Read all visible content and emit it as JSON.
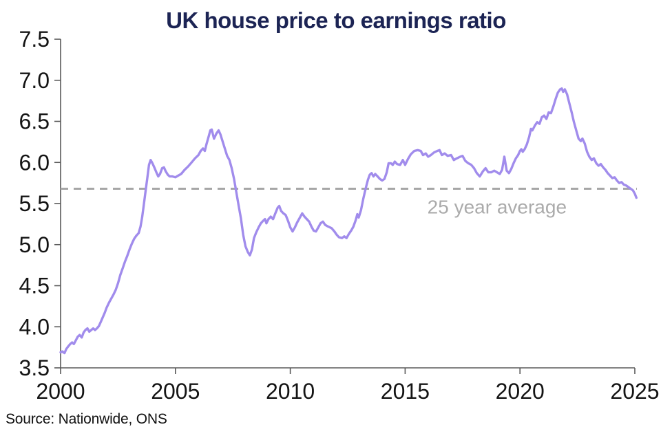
{
  "title": "UK house price to earnings ratio",
  "source": "Source: Nationwide, ONS",
  "colors": {
    "title": "#1c2454",
    "series_line": "#a18cec",
    "reference_line": "#a6a6a6",
    "reference_label": "#ababab",
    "axis": "#595959",
    "tick_label": "#141414",
    "background": "#ffffff"
  },
  "chart_data": {
    "type": "line",
    "title": "UK house price to earnings ratio",
    "xlabel": "",
    "ylabel": "",
    "xlim": [
      2000,
      2025
    ],
    "ylim": [
      3.5,
      7.5
    ],
    "x_ticks": [
      2000,
      2005,
      2010,
      2015,
      2020,
      2025
    ],
    "y_ticks": [
      3.5,
      4.0,
      4.5,
      5.0,
      5.5,
      6.0,
      6.5,
      7.0,
      7.5
    ],
    "grid": false,
    "legend_position": "none",
    "reference_line": {
      "label": "25 year average",
      "value": 5.68,
      "style": "dashed",
      "color": "#a6a6a6",
      "label_anchor_x": 2019.0,
      "label_anchor_y": 5.38
    },
    "series": [
      {
        "name": "UK house price to earnings ratio",
        "color": "#a18cec",
        "points": [
          [
            2000.0,
            3.69
          ],
          [
            2000.08,
            3.7
          ],
          [
            2000.17,
            3.68
          ],
          [
            2000.25,
            3.73
          ],
          [
            2000.33,
            3.76
          ],
          [
            2000.42,
            3.79
          ],
          [
            2000.5,
            3.81
          ],
          [
            2000.58,
            3.79
          ],
          [
            2000.67,
            3.84
          ],
          [
            2000.75,
            3.88
          ],
          [
            2000.83,
            3.9
          ],
          [
            2000.92,
            3.87
          ],
          [
            2001.0,
            3.93
          ],
          [
            2001.08,
            3.96
          ],
          [
            2001.17,
            3.98
          ],
          [
            2001.25,
            3.94
          ],
          [
            2001.33,
            3.96
          ],
          [
            2001.42,
            3.98
          ],
          [
            2001.5,
            3.96
          ],
          [
            2001.58,
            3.98
          ],
          [
            2001.67,
            4.01
          ],
          [
            2001.75,
            4.06
          ],
          [
            2001.83,
            4.11
          ],
          [
            2001.92,
            4.17
          ],
          [
            2002.0,
            4.23
          ],
          [
            2002.1,
            4.29
          ],
          [
            2002.2,
            4.34
          ],
          [
            2002.3,
            4.39
          ],
          [
            2002.4,
            4.45
          ],
          [
            2002.5,
            4.53
          ],
          [
            2002.6,
            4.63
          ],
          [
            2002.7,
            4.71
          ],
          [
            2002.8,
            4.79
          ],
          [
            2002.9,
            4.86
          ],
          [
            2003.0,
            4.94
          ],
          [
            2003.1,
            5.01
          ],
          [
            2003.2,
            5.07
          ],
          [
            2003.3,
            5.11
          ],
          [
            2003.4,
            5.14
          ],
          [
            2003.48,
            5.22
          ],
          [
            2003.55,
            5.33
          ],
          [
            2003.62,
            5.48
          ],
          [
            2003.7,
            5.65
          ],
          [
            2003.78,
            5.82
          ],
          [
            2003.85,
            5.97
          ],
          [
            2003.92,
            6.03
          ],
          [
            2004.0,
            5.99
          ],
          [
            2004.08,
            5.94
          ],
          [
            2004.17,
            5.88
          ],
          [
            2004.25,
            5.83
          ],
          [
            2004.33,
            5.86
          ],
          [
            2004.42,
            5.93
          ],
          [
            2004.5,
            5.94
          ],
          [
            2004.58,
            5.89
          ],
          [
            2004.67,
            5.85
          ],
          [
            2004.75,
            5.83
          ],
          [
            2004.87,
            5.83
          ],
          [
            2005.0,
            5.82
          ],
          [
            2005.12,
            5.84
          ],
          [
            2005.25,
            5.86
          ],
          [
            2005.4,
            5.91
          ],
          [
            2005.55,
            5.95
          ],
          [
            2005.7,
            6.0
          ],
          [
            2005.85,
            6.05
          ],
          [
            2006.0,
            6.09
          ],
          [
            2006.1,
            6.14
          ],
          [
            2006.2,
            6.17
          ],
          [
            2006.28,
            6.14
          ],
          [
            2006.35,
            6.22
          ],
          [
            2006.45,
            6.32
          ],
          [
            2006.52,
            6.39
          ],
          [
            2006.58,
            6.4
          ],
          [
            2006.68,
            6.29
          ],
          [
            2006.78,
            6.35
          ],
          [
            2006.88,
            6.39
          ],
          [
            2006.96,
            6.34
          ],
          [
            2007.05,
            6.26
          ],
          [
            2007.15,
            6.17
          ],
          [
            2007.25,
            6.08
          ],
          [
            2007.35,
            6.03
          ],
          [
            2007.45,
            5.93
          ],
          [
            2007.55,
            5.8
          ],
          [
            2007.65,
            5.64
          ],
          [
            2007.75,
            5.48
          ],
          [
            2007.85,
            5.32
          ],
          [
            2007.95,
            5.12
          ],
          [
            2008.05,
            4.98
          ],
          [
            2008.15,
            4.91
          ],
          [
            2008.24,
            4.87
          ],
          [
            2008.33,
            4.94
          ],
          [
            2008.42,
            5.08
          ],
          [
            2008.52,
            5.15
          ],
          [
            2008.62,
            5.21
          ],
          [
            2008.72,
            5.26
          ],
          [
            2008.82,
            5.29
          ],
          [
            2008.9,
            5.31
          ],
          [
            2008.96,
            5.26
          ],
          [
            2009.05,
            5.31
          ],
          [
            2009.15,
            5.34
          ],
          [
            2009.25,
            5.31
          ],
          [
            2009.35,
            5.38
          ],
          [
            2009.45,
            5.45
          ],
          [
            2009.52,
            5.47
          ],
          [
            2009.6,
            5.41
          ],
          [
            2009.7,
            5.38
          ],
          [
            2009.8,
            5.36
          ],
          [
            2009.9,
            5.29
          ],
          [
            2010.0,
            5.21
          ],
          [
            2010.1,
            5.16
          ],
          [
            2010.2,
            5.21
          ],
          [
            2010.3,
            5.27
          ],
          [
            2010.42,
            5.33
          ],
          [
            2010.52,
            5.38
          ],
          [
            2010.62,
            5.34
          ],
          [
            2010.72,
            5.31
          ],
          [
            2010.82,
            5.28
          ],
          [
            2010.92,
            5.22
          ],
          [
            2011.02,
            5.17
          ],
          [
            2011.12,
            5.16
          ],
          [
            2011.22,
            5.21
          ],
          [
            2011.32,
            5.26
          ],
          [
            2011.42,
            5.28
          ],
          [
            2011.52,
            5.24
          ],
          [
            2011.65,
            5.22
          ],
          [
            2011.8,
            5.2
          ],
          [
            2011.92,
            5.16
          ],
          [
            2012.02,
            5.12
          ],
          [
            2012.12,
            5.09
          ],
          [
            2012.25,
            5.08
          ],
          [
            2012.35,
            5.1
          ],
          [
            2012.45,
            5.08
          ],
          [
            2012.55,
            5.13
          ],
          [
            2012.65,
            5.17
          ],
          [
            2012.75,
            5.22
          ],
          [
            2012.85,
            5.3
          ],
          [
            2012.92,
            5.37
          ],
          [
            2012.98,
            5.33
          ],
          [
            2013.08,
            5.42
          ],
          [
            2013.18,
            5.56
          ],
          [
            2013.28,
            5.68
          ],
          [
            2013.38,
            5.79
          ],
          [
            2013.46,
            5.85
          ],
          [
            2013.54,
            5.87
          ],
          [
            2013.62,
            5.83
          ],
          [
            2013.7,
            5.86
          ],
          [
            2013.8,
            5.83
          ],
          [
            2013.9,
            5.8
          ],
          [
            2014.0,
            5.78
          ],
          [
            2014.1,
            5.8
          ],
          [
            2014.2,
            5.88
          ],
          [
            2014.28,
            5.99
          ],
          [
            2014.38,
            5.99
          ],
          [
            2014.46,
            5.97
          ],
          [
            2014.55,
            6.01
          ],
          [
            2014.65,
            5.98
          ],
          [
            2014.78,
            5.97
          ],
          [
            2014.9,
            6.03
          ],
          [
            2015.0,
            5.97
          ],
          [
            2015.12,
            6.04
          ],
          [
            2015.25,
            6.1
          ],
          [
            2015.4,
            6.14
          ],
          [
            2015.55,
            6.15
          ],
          [
            2015.68,
            6.14
          ],
          [
            2015.78,
            6.09
          ],
          [
            2015.9,
            6.11
          ],
          [
            2016.0,
            6.07
          ],
          [
            2016.12,
            6.09
          ],
          [
            2016.25,
            6.12
          ],
          [
            2016.4,
            6.14
          ],
          [
            2016.5,
            6.15
          ],
          [
            2016.6,
            6.09
          ],
          [
            2016.72,
            6.11
          ],
          [
            2016.85,
            6.08
          ],
          [
            2017.0,
            6.09
          ],
          [
            2017.12,
            6.03
          ],
          [
            2017.25,
            6.05
          ],
          [
            2017.4,
            6.07
          ],
          [
            2017.5,
            6.08
          ],
          [
            2017.62,
            6.02
          ],
          [
            2017.75,
            5.99
          ],
          [
            2017.88,
            5.97
          ],
          [
            2018.0,
            5.93
          ],
          [
            2018.12,
            5.87
          ],
          [
            2018.25,
            5.83
          ],
          [
            2018.38,
            5.89
          ],
          [
            2018.5,
            5.93
          ],
          [
            2018.62,
            5.88
          ],
          [
            2018.75,
            5.88
          ],
          [
            2018.88,
            5.9
          ],
          [
            2019.0,
            5.88
          ],
          [
            2019.12,
            5.86
          ],
          [
            2019.22,
            5.91
          ],
          [
            2019.32,
            6.07
          ],
          [
            2019.42,
            5.9
          ],
          [
            2019.52,
            5.87
          ],
          [
            2019.62,
            5.92
          ],
          [
            2019.72,
            5.99
          ],
          [
            2019.82,
            6.05
          ],
          [
            2019.92,
            6.09
          ],
          [
            2020.0,
            6.14
          ],
          [
            2020.06,
            6.16
          ],
          [
            2020.12,
            6.13
          ],
          [
            2020.2,
            6.16
          ],
          [
            2020.3,
            6.22
          ],
          [
            2020.4,
            6.31
          ],
          [
            2020.48,
            6.41
          ],
          [
            2020.54,
            6.39
          ],
          [
            2020.65,
            6.45
          ],
          [
            2020.75,
            6.49
          ],
          [
            2020.85,
            6.47
          ],
          [
            2020.95,
            6.55
          ],
          [
            2021.05,
            6.57
          ],
          [
            2021.15,
            6.53
          ],
          [
            2021.25,
            6.61
          ],
          [
            2021.35,
            6.6
          ],
          [
            2021.45,
            6.68
          ],
          [
            2021.55,
            6.77
          ],
          [
            2021.65,
            6.85
          ],
          [
            2021.75,
            6.89
          ],
          [
            2021.82,
            6.9
          ],
          [
            2021.88,
            6.86
          ],
          [
            2021.95,
            6.89
          ],
          [
            2022.05,
            6.83
          ],
          [
            2022.15,
            6.72
          ],
          [
            2022.25,
            6.61
          ],
          [
            2022.35,
            6.49
          ],
          [
            2022.45,
            6.39
          ],
          [
            2022.55,
            6.29
          ],
          [
            2022.65,
            6.26
          ],
          [
            2022.72,
            6.29
          ],
          [
            2022.82,
            6.23
          ],
          [
            2022.92,
            6.13
          ],
          [
            2023.02,
            6.07
          ],
          [
            2023.12,
            6.03
          ],
          [
            2023.22,
            6.05
          ],
          [
            2023.32,
            5.99
          ],
          [
            2023.42,
            5.96
          ],
          [
            2023.52,
            5.98
          ],
          [
            2023.62,
            5.94
          ],
          [
            2023.72,
            5.91
          ],
          [
            2023.82,
            5.87
          ],
          [
            2023.92,
            5.84
          ],
          [
            2024.02,
            5.81
          ],
          [
            2024.12,
            5.82
          ],
          [
            2024.22,
            5.78
          ],
          [
            2024.32,
            5.75
          ],
          [
            2024.42,
            5.76
          ],
          [
            2024.52,
            5.73
          ],
          [
            2024.62,
            5.72
          ],
          [
            2024.72,
            5.7
          ],
          [
            2024.82,
            5.68
          ],
          [
            2024.92,
            5.66
          ],
          [
            2025.0,
            5.62
          ],
          [
            2025.07,
            5.57
          ]
        ]
      }
    ]
  }
}
